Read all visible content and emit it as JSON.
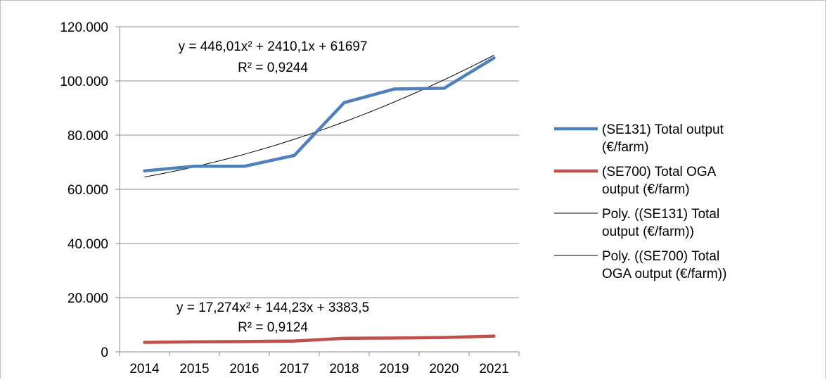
{
  "chart_data": {
    "type": "line",
    "title": "",
    "xlabel": "",
    "ylabel": "",
    "categories": [
      "2014",
      "2015",
      "2016",
      "2017",
      "2018",
      "2019",
      "2020",
      "2021"
    ],
    "ylim": [
      0,
      120000
    ],
    "y_ticks": [
      0,
      20000,
      40000,
      60000,
      80000,
      100000,
      120000
    ],
    "y_tick_labels": [
      "0",
      "20.000",
      "40.000",
      "60.000",
      "80.000",
      "100.000",
      "120.000"
    ],
    "grid": true,
    "legend_position": "right",
    "series": [
      {
        "name": "(SE131) Total output (€/farm)",
        "name_lines": [
          "(SE131) Total output",
          "(€/farm)"
        ],
        "color": "#4f81bd",
        "values": [
          66800,
          68500,
          68500,
          72500,
          92000,
          97000,
          97300,
          108500
        ]
      },
      {
        "name": "(SE700) Total OGA output (€/farm)",
        "name_lines": [
          "(SE700) Total OGA",
          "output (€/farm)"
        ],
        "color": "#c0504d",
        "values": [
          3500,
          3700,
          3800,
          4000,
          5000,
          5100,
          5300,
          5800
        ]
      }
    ],
    "trendlines": [
      {
        "name": "Poly. ((SE131) Total output (€/farm))",
        "name_lines": [
          "Poly. ((SE131) Total",
          "output (€/farm))"
        ],
        "color": "#000000",
        "coef": [
          446.01,
          2410.1,
          61697
        ],
        "equation": "y = 446,01x² + 2410,1x + 61697",
        "r2": "R² = 0,9244"
      },
      {
        "name": "Poly. ((SE700) Total OGA output (€/farm))",
        "name_lines": [
          "Poly. ((SE700) Total",
          "OGA output (€/farm))"
        ],
        "color": "#000000",
        "coef": [
          17.274,
          144.23,
          3383.5
        ],
        "equation": "y = 17,274x² + 144,23x + 3383,5",
        "r2": "R² = 0,9124"
      }
    ]
  }
}
